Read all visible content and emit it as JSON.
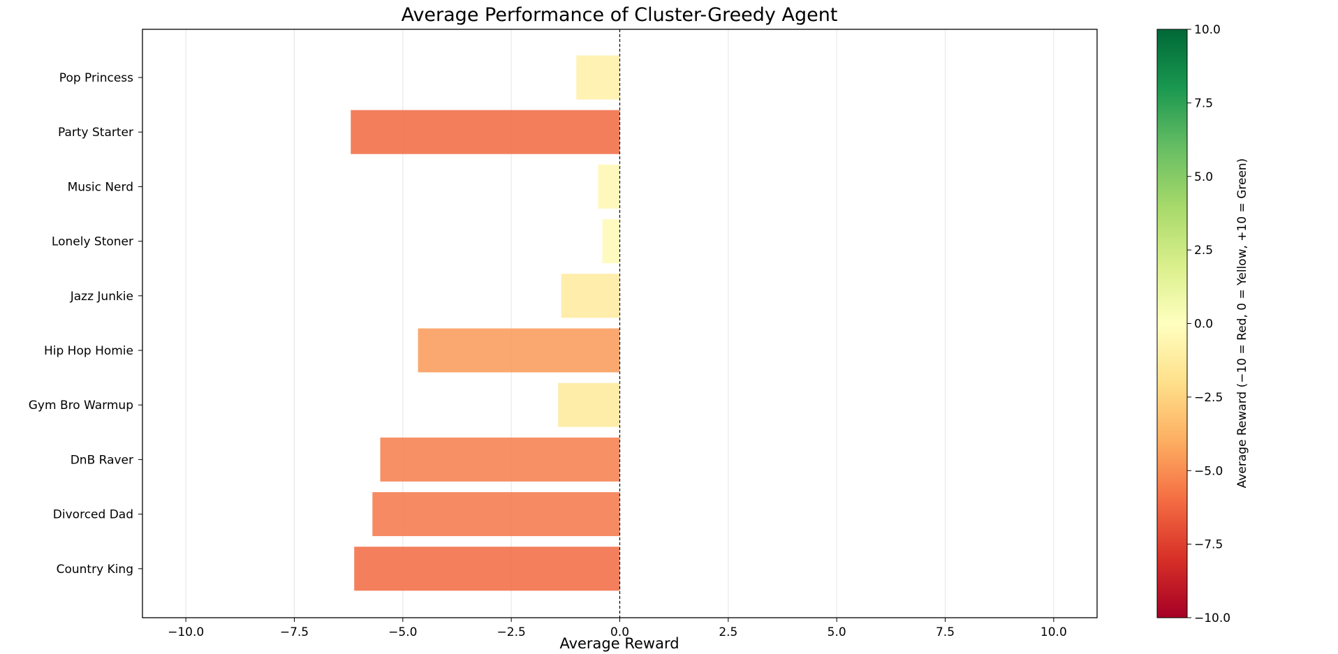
{
  "chart_data": {
    "type": "bar",
    "orientation": "horizontal",
    "title": "Average Performance of Cluster-Greedy Agent",
    "xlabel": "Average Reward",
    "ylabel": "",
    "xlim": [
      -11,
      11
    ],
    "xticks": [
      -10.0,
      -7.5,
      -5.0,
      -2.5,
      0.0,
      2.5,
      5.0,
      7.5,
      10.0
    ],
    "xtick_labels": [
      "−10.0",
      "−7.5",
      "−5.0",
      "−2.5",
      "0.0",
      "2.5",
      "5.0",
      "7.5",
      "10.0"
    ],
    "grid": "vertical",
    "reference_line": {
      "x": 0,
      "style": "dashed"
    },
    "categories": [
      "Pop Princess",
      "Party Starter",
      "Music Nerd",
      "Lonely Stoner",
      "Jazz Junkie",
      "Hip Hop Homie",
      "Gym Bro Warmup",
      "DnB Raver",
      "Divorced Dad",
      "Country King"
    ],
    "values": [
      -1.0,
      -6.2,
      -0.5,
      -0.4,
      -1.35,
      -4.65,
      -1.42,
      -5.52,
      -5.7,
      -6.12
    ],
    "colorbar": {
      "label": "Average Reward (−10 = Red, 0 = Yellow, +10 = Green)",
      "range": [
        -10,
        10
      ],
      "colormap": "RdYlGn",
      "ticks": [
        10.0,
        7.5,
        5.0,
        2.5,
        0.0,
        -2.5,
        -5.0,
        -7.5,
        -10.0
      ],
      "tick_labels": [
        "10.0",
        "7.5",
        "5.0",
        "2.5",
        "0.0",
        "−2.5",
        "−5.0",
        "−7.5",
        "−10.0"
      ],
      "colors": [
        "#a50026",
        "#d73027",
        "#f46d43",
        "#fdae61",
        "#fee08b",
        "#ffffbf",
        "#d9ef8b",
        "#a6d96a",
        "#66bd63",
        "#1a9850",
        "#006837"
      ]
    }
  }
}
